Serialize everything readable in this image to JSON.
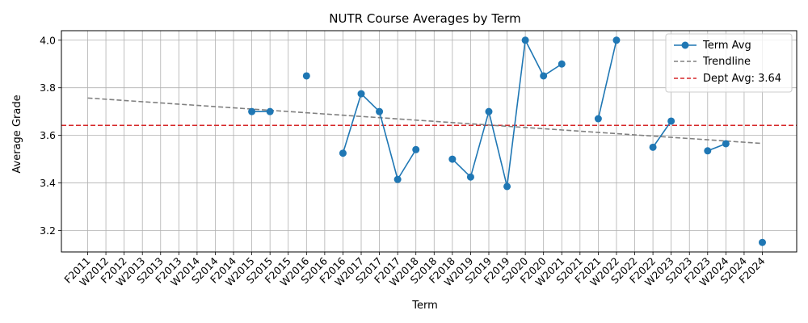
{
  "chart_data": {
    "type": "line",
    "title": "NUTR Course Averages by Term",
    "xlabel": "Term",
    "ylabel": "Average Grade",
    "ylim": [
      3.11,
      4.04
    ],
    "yticks": [
      3.2,
      3.4,
      3.6,
      3.8,
      4.0
    ],
    "ytick_labels": [
      "3.2",
      "3.4",
      "3.6",
      "3.8",
      "4.0"
    ],
    "grid": true,
    "legend_position": "top-right",
    "categories": [
      "F2011",
      "W2012",
      "F2012",
      "W2013",
      "S2013",
      "F2013",
      "W2014",
      "S2014",
      "F2014",
      "W2015",
      "S2015",
      "F2015",
      "W2016",
      "S2016",
      "F2016",
      "W2017",
      "S2017",
      "F2017",
      "W2018",
      "S2018",
      "F2018",
      "W2019",
      "S2019",
      "F2019",
      "S2020",
      "F2020",
      "W2021",
      "S2021",
      "F2021",
      "W2022",
      "S2022",
      "F2022",
      "W2023",
      "S2023",
      "F2023",
      "W2024",
      "S2024",
      "F2024"
    ],
    "series": [
      {
        "name": "Term Avg",
        "color": "#1f77b4",
        "values": [
          null,
          null,
          null,
          null,
          null,
          null,
          null,
          null,
          null,
          3.7,
          3.7,
          null,
          3.85,
          null,
          3.525,
          3.775,
          3.7,
          3.415,
          3.54,
          null,
          3.5,
          3.425,
          3.7,
          3.385,
          4.0,
          3.85,
          3.9,
          null,
          3.67,
          4.0,
          null,
          3.55,
          3.66,
          null,
          3.535,
          3.565,
          null,
          3.15
        ]
      }
    ],
    "trendline": {
      "name": "Trendline",
      "color": "#808080",
      "start": 3.757,
      "end": 3.566
    },
    "reference_line": {
      "name": "Dept Avg: 3.64",
      "value": 3.642,
      "color": "#d62728"
    }
  }
}
